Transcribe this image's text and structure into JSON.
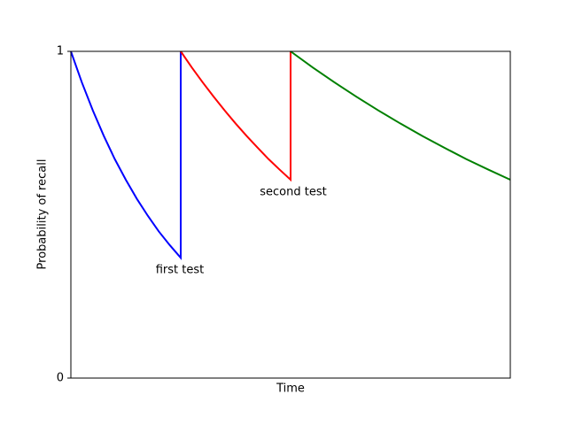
{
  "chart_data": {
    "type": "line",
    "xlabel": "Time",
    "ylabel": "Probability of recall",
    "xlim": [
      0,
      4
    ],
    "ylim": [
      0,
      1
    ],
    "yticks": [
      0,
      1
    ],
    "series": [
      {
        "color": "#0000ff",
        "x": [
          0,
          0.1,
          0.2,
          0.3,
          0.4,
          0.5,
          0.6,
          0.7,
          0.8,
          0.9,
          1,
          1
        ],
        "values": [
          1,
          0.905,
          0.819,
          0.741,
          0.67,
          0.607,
          0.549,
          0.497,
          0.449,
          0.407,
          0.368,
          1
        ]
      },
      {
        "color": "#ff0000",
        "x": [
          1,
          1.1,
          1.2,
          1.3,
          1.4,
          1.5,
          1.6,
          1.7,
          1.8,
          1.9,
          2,
          2
        ],
        "values": [
          1,
          0.951,
          0.905,
          0.861,
          0.819,
          0.779,
          0.741,
          0.705,
          0.67,
          0.638,
          0.607,
          1
        ]
      },
      {
        "color": "#008000",
        "x": [
          2,
          2.2,
          2.4,
          2.6,
          2.8,
          3,
          3.2,
          3.4,
          3.6,
          3.8,
          4
        ],
        "values": [
          1,
          0.951,
          0.905,
          0.861,
          0.819,
          0.779,
          0.741,
          0.705,
          0.67,
          0.638,
          0.607
        ]
      }
    ],
    "annotations": [
      "first test",
      "second test"
    ]
  }
}
